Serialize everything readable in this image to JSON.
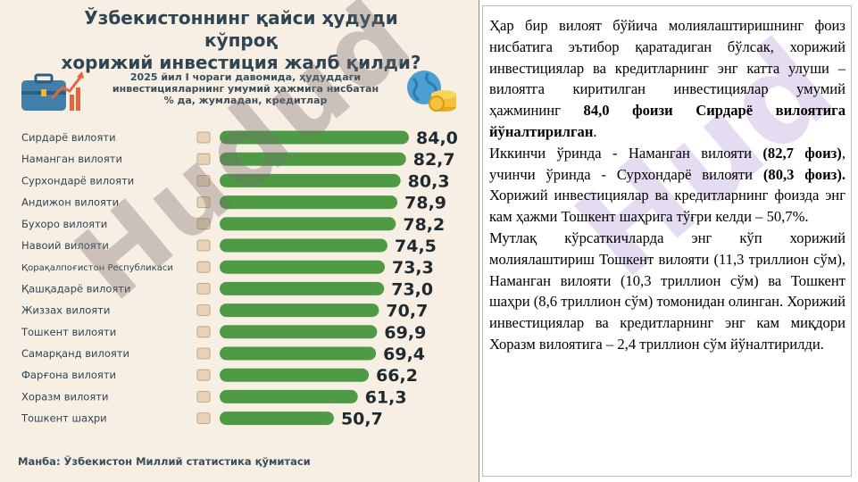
{
  "infographic": {
    "title_line1": "Ўзбекистоннинг қайси ҳудуди кўпроқ",
    "title_line2": "хорижий инвестиция жалб қилди?",
    "subtitle_line1": "2025 йил I чораги давомида, ҳудуддаги",
    "subtitle_line2": "инвестицияларнинг умумий ҳажмига нисбатан",
    "subtitle_line3": "% да, жумладан, кредитлар",
    "source": "Манба: Ўзбекистон Миллий статистика қўмитаси",
    "watermark": "Hudud",
    "bar_color": "#4e9a45",
    "value_color": "#1f2a30"
  },
  "chart_data": {
    "type": "bar",
    "orientation": "horizontal",
    "title": "Ўзбекистоннинг қайси ҳудуди кўпроқ хорижий инвестиция жалб қилди?",
    "subtitle": "2025 йил I чораги давомида, ҳудуддаги инвестицияларнинг умумий ҳажмига нисбатан % да, жумладан, кредитлар",
    "categories": [
      "Сирдарё вилояти",
      "Наманган вилояти",
      "Сурхондарё вилояти",
      "Андижон вилояти",
      "Бухоро вилояти",
      "Навоий вилояти",
      "Қорақалпоғистон Республикаси",
      "Қашқадарё вилояти",
      "Жиззах вилояти",
      "Тошкент вилояти",
      "Самарқанд вилояти",
      "Фарғона вилояти",
      "Хоразм вилояти",
      "Тошкент шаҳри"
    ],
    "values": [
      84.0,
      82.7,
      80.3,
      78.9,
      78.2,
      74.5,
      73.3,
      73.0,
      70.7,
      69.9,
      69.4,
      66.2,
      61.3,
      50.7
    ],
    "value_labels": [
      "84,0",
      "82,7",
      "80,3",
      "78,9",
      "78,2",
      "74,5",
      "73,3",
      "73,0",
      "70,7",
      "69,9",
      "69,4",
      "66,2",
      "61,3",
      "50,7"
    ],
    "xlim": [
      0,
      84.0
    ],
    "grid": false,
    "legend": "none"
  },
  "text_panel": {
    "watermark": "Hud",
    "p1_a": "Ҳар бир вилоят бўйича молиялаштиришнинг фоиз нисбатига эътибор қаратадиган бўлсак, хорижий инвестициялар ва кредитларнинг энг катта улуши – вилоятга киритилган инвестициялар умумий ҳажмининг ",
    "p1_b": "84,0 фоизи Сирдарё вилоятига йўналтирилган",
    "p1_c": ".",
    "p2_a": "Иккинчи ўринда - Наманган вилояти ",
    "p2_b": "(82,7 фоиз)",
    "p2_c": ", учинчи ўринда - Сурхондарё вилояти ",
    "p2_d": "(80,3 фоиз).",
    "p2_e": " Хорижий инвестициялар ва кредитларнинг фоизда энг кам ҳажми Тошкент шаҳрига тўғри келди – 50,7%.",
    "p3": "Мутлақ кўрсаткичларда энг кўп хорижий молиялаштириш Тошкент вилояти (11,3 триллион сўм), Наманган вилояти (10,3 триллион сўм) ва Тошкент шаҳри (8,6 триллион сўм) томонидан олинган. Хорижий инвестициялар ва кредитларнинг энг кам миқдори Хоразм вилоятига – 2,4 триллион сўм йўналтирилди."
  }
}
